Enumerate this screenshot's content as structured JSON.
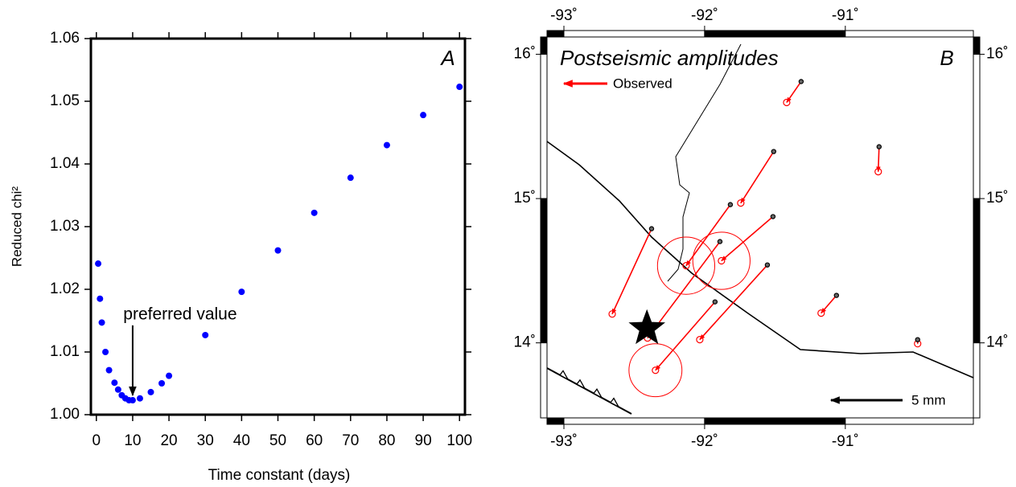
{
  "chart_data": [
    {
      "type": "scatter",
      "x_label": "Time constant (days)",
      "y_label": "Reduced chi²",
      "panel_label": "A",
      "color": "#0000ff",
      "x": [
        0.5,
        1,
        1.5,
        2.5,
        3.5,
        5,
        6,
        7,
        8,
        9,
        10,
        12,
        15,
        18,
        20,
        30,
        40,
        50,
        60,
        70,
        80,
        90,
        100
      ],
      "values": [
        1.0241,
        1.0185,
        1.0147,
        1.01,
        1.0071,
        1.0051,
        1.004,
        1.0031,
        1.0026,
        1.0023,
        1.0023,
        1.0026,
        1.0036,
        1.005,
        1.0062,
        1.0127,
        1.0196,
        1.0262,
        1.0322,
        1.0378,
        1.043,
        1.0478,
        1.0523
      ],
      "xlim": [
        -1.5,
        101.5
      ],
      "xticks": [
        0,
        10,
        20,
        30,
        40,
        50,
        60,
        70,
        80,
        90,
        100
      ],
      "ylim": [
        1.0,
        1.06
      ],
      "yticks": [
        {
          "value": 1.0,
          "label": "1.00"
        },
        {
          "value": 1.01,
          "label": "1.01"
        },
        {
          "value": 1.02,
          "label": "1.02"
        },
        {
          "value": 1.03,
          "label": "1.03"
        },
        {
          "value": 1.04,
          "label": "1.04"
        },
        {
          "value": 1.05,
          "label": "1.05"
        },
        {
          "value": 1.06,
          "label": "1.06"
        }
      ],
      "annotation": {
        "text": "preferred value",
        "x": 10,
        "y": 1.0031
      }
    },
    {
      "type": "map",
      "title": "Postseismic amplitudes",
      "panel_label": "B",
      "legend": "Observed",
      "color": "#ff0000",
      "scale": {
        "value": 5,
        "label": "5 mm"
      },
      "xlim": [
        -93.12,
        -90.09
      ],
      "xticks": [
        {
          "value": -93,
          "label": "-93˚"
        },
        {
          "value": -92,
          "label": "-92˚"
        },
        {
          "value": -91,
          "label": "-91˚"
        }
      ],
      "ylim": [
        13.48,
        16.12
      ],
      "yticks": [
        {
          "value": 16,
          "label": "16˚"
        },
        {
          "value": 15,
          "label": "15˚"
        },
        {
          "value": 14,
          "label": "14˚"
        }
      ],
      "stations": {
        "lon": [
          -91.314,
          -91.509,
          -90.76,
          -91.817,
          -91.514,
          -91.891,
          -92.377,
          -91.554,
          -91.926,
          -91.063,
          -90.486
        ],
        "lat": [
          15.811,
          15.326,
          15.359,
          14.958,
          14.875,
          14.702,
          14.791,
          14.54,
          14.284,
          14.329,
          14.022
        ],
        "east": [
          -1.01,
          -2.3,
          -0.06,
          -3.09,
          -3.6,
          -5.06,
          -2.75,
          -4.72,
          -4.16,
          -1.07,
          0
        ],
        "north": [
          -1.46,
          -3.6,
          -1.74,
          -4.27,
          -3.09,
          -6.74,
          -5.96,
          -5.22,
          -4.78,
          -1.24,
          -0.28
        ],
        "sigma": [
          null,
          null,
          null,
          2.0,
          2.0,
          null,
          null,
          null,
          1.85,
          null,
          null
        ]
      },
      "epicenter": {
        "lon": -92.41,
        "lat": 14.1
      }
    }
  ]
}
